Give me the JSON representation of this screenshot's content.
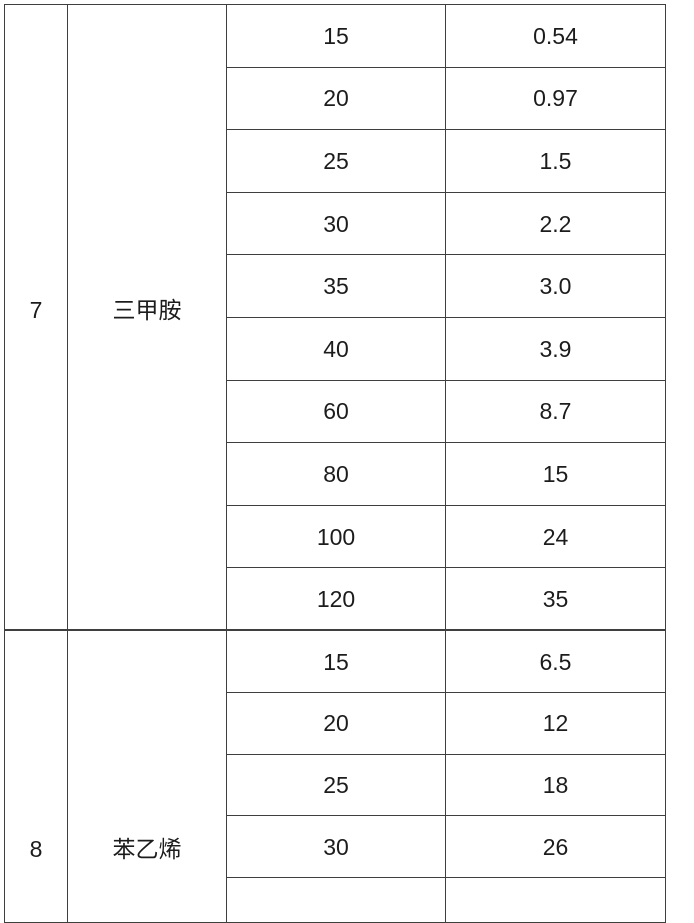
{
  "table": {
    "border_color": "#3f3f3f",
    "text_color": "#1c1c1c",
    "background": "#ffffff",
    "columns": [
      "index",
      "substance",
      "temperature",
      "value"
    ],
    "sections": [
      {
        "index": "7",
        "name": "三甲胺",
        "rows": [
          {
            "temp": "15",
            "value": "0.54"
          },
          {
            "temp": "20",
            "value": "0.97"
          },
          {
            "temp": "25",
            "value": "1.5"
          },
          {
            "temp": "30",
            "value": "2.2"
          },
          {
            "temp": "35",
            "value": "3.0"
          },
          {
            "temp": "40",
            "value": "3.9"
          },
          {
            "temp": "60",
            "value": "8.7"
          },
          {
            "temp": "80",
            "value": "15"
          },
          {
            "temp": "100",
            "value": "24"
          },
          {
            "temp": "120",
            "value": "35"
          }
        ]
      },
      {
        "index": "8",
        "name": "苯乙烯",
        "rows": [
          {
            "temp": "15",
            "value": "6.5"
          },
          {
            "temp": "20",
            "value": "12"
          },
          {
            "temp": "25",
            "value": "18"
          },
          {
            "temp": "30",
            "value": "26"
          },
          {
            "temp": "",
            "value": ""
          }
        ]
      }
    ]
  }
}
